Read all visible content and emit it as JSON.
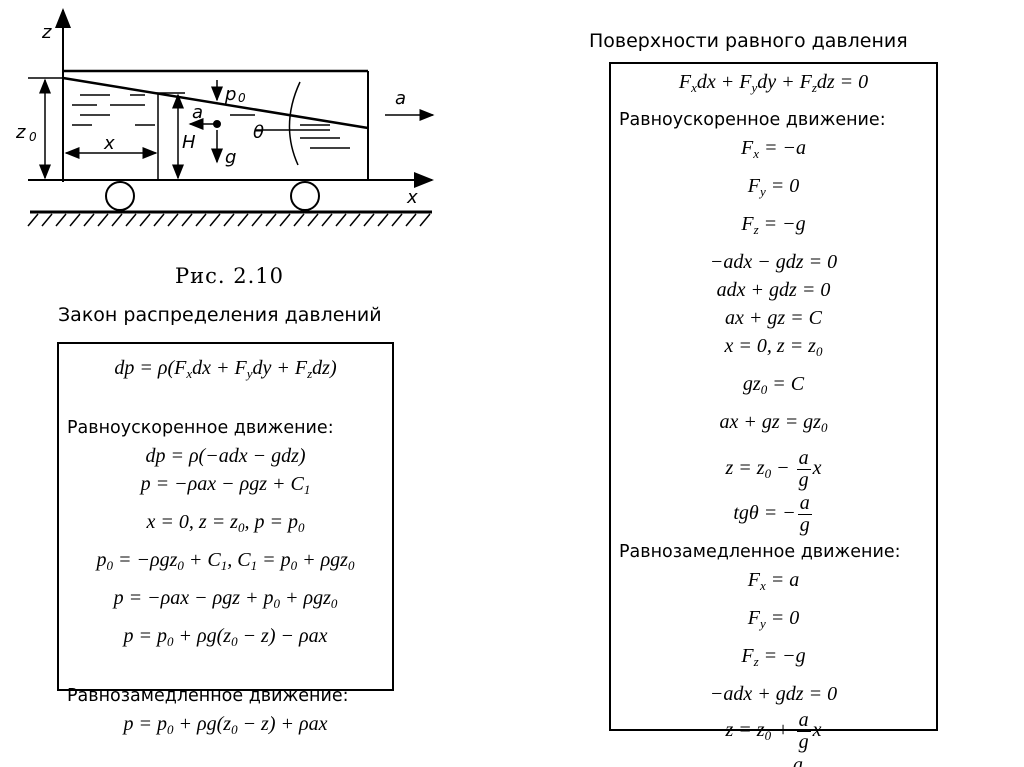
{
  "figure": {
    "caption": "Рис. 2.10",
    "labels": {
      "z_axis": "z",
      "x_axis": "x",
      "z0": "z",
      "z0_sub": "0",
      "x": "x",
      "H": "H",
      "p0": "p",
      "p0_sub": "0",
      "a_inner": "a",
      "g": "g",
      "theta": "θ",
      "a_outer": "a"
    }
  },
  "left": {
    "title": "Закон распределения давлений",
    "lines": [
      {
        "type": "formula",
        "text": "dp = ρ(F_{x}dx + F_{y}dy + F_{z}dz)"
      },
      {
        "type": "gap"
      },
      {
        "type": "label",
        "text": "Равноускоренное движение:"
      },
      {
        "type": "formula",
        "text": "dp = ρ(−adx − gdz)"
      },
      {
        "type": "formula",
        "text": "p = −ρax − ρgz + C_{1}"
      },
      {
        "type": "formula",
        "text": "x = 0, z = z_{0}, p = p_{0}"
      },
      {
        "type": "formula",
        "text": "p_{0} = −ρgz_{0} + C_{1}, C_{1} = p_{0} + ρgz_{0}"
      },
      {
        "type": "formula",
        "text": "p = −ρax − ρgz + p_{0} + ρgz_{0}"
      },
      {
        "type": "formula",
        "text": "p = p_{0} + ρg(z_{0} − z) − ρax"
      },
      {
        "type": "gap"
      },
      {
        "type": "label",
        "text": "Равнозамедленное движение:"
      },
      {
        "type": "formula",
        "text": "p = p_{0} + ρg(z_{0} − z) + ρax"
      }
    ]
  },
  "right": {
    "title": "Поверхности равного давления",
    "lines": [
      {
        "type": "formula",
        "text": "F_{x}dx + F_{y}dy + F_{z}dz = 0"
      },
      {
        "type": "label",
        "text": "Равноускоренное движение:"
      },
      {
        "type": "formula",
        "text": "F_{x} = −a"
      },
      {
        "type": "formula",
        "text": "F_{y} = 0"
      },
      {
        "type": "formula",
        "text": "F_{z} = −g"
      },
      {
        "type": "formula",
        "text": "−adx − gdz = 0"
      },
      {
        "type": "formula",
        "text": "adx + gdz = 0"
      },
      {
        "type": "formula",
        "text": "ax + gz = C"
      },
      {
        "type": "formula",
        "text": "x = 0, z = z_{0}"
      },
      {
        "type": "formula",
        "text": "gz_{0} = C"
      },
      {
        "type": "formula",
        "text": "ax + gz = gz_{0}"
      },
      {
        "type": "formula",
        "text": "z = z_{0} − \\frac{a}{g}x"
      },
      {
        "type": "formula",
        "text": "tgθ = −\\frac{a}{g}"
      },
      {
        "type": "label",
        "text": "Равнозамедленное движение:"
      },
      {
        "type": "formula",
        "text": "F_{x} = a"
      },
      {
        "type": "formula",
        "text": "F_{y} = 0"
      },
      {
        "type": "formula",
        "text": "F_{z} = −g"
      },
      {
        "type": "formula",
        "text": "−adx + gdz = 0"
      },
      {
        "type": "formula",
        "text": "z = z_{0} + \\frac{a}{g}x"
      },
      {
        "type": "formula",
        "text": "tgθ = \\frac{a}{g}"
      }
    ]
  }
}
